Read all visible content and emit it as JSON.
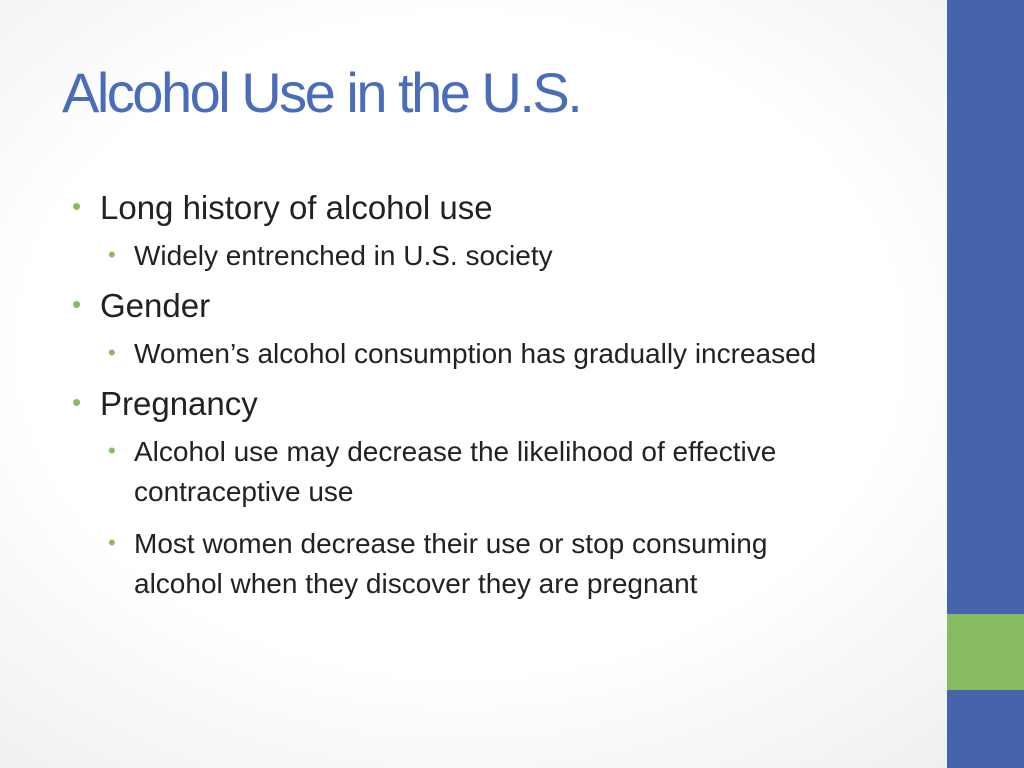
{
  "slide": {
    "title": "Alcohol Use in the U.S.",
    "bullets": [
      {
        "text": "Long history of alcohol use",
        "sub": [
          "Widely entrenched in U.S. society"
        ]
      },
      {
        "text": "Gender",
        "sub": [
          "Women’s alcohol consumption has gradually increased"
        ]
      },
      {
        "text": "Pregnancy",
        "sub": [
          "Alcohol use may decrease the likelihood of effective contraceptive use",
          "Most women decrease their use or stop consuming alcohol when they discover they are pregnant"
        ]
      }
    ],
    "bullet_glyph": "•",
    "colors": {
      "title": "#4a6db8",
      "bar": "#4564ac",
      "accent": "#87bb62"
    }
  }
}
